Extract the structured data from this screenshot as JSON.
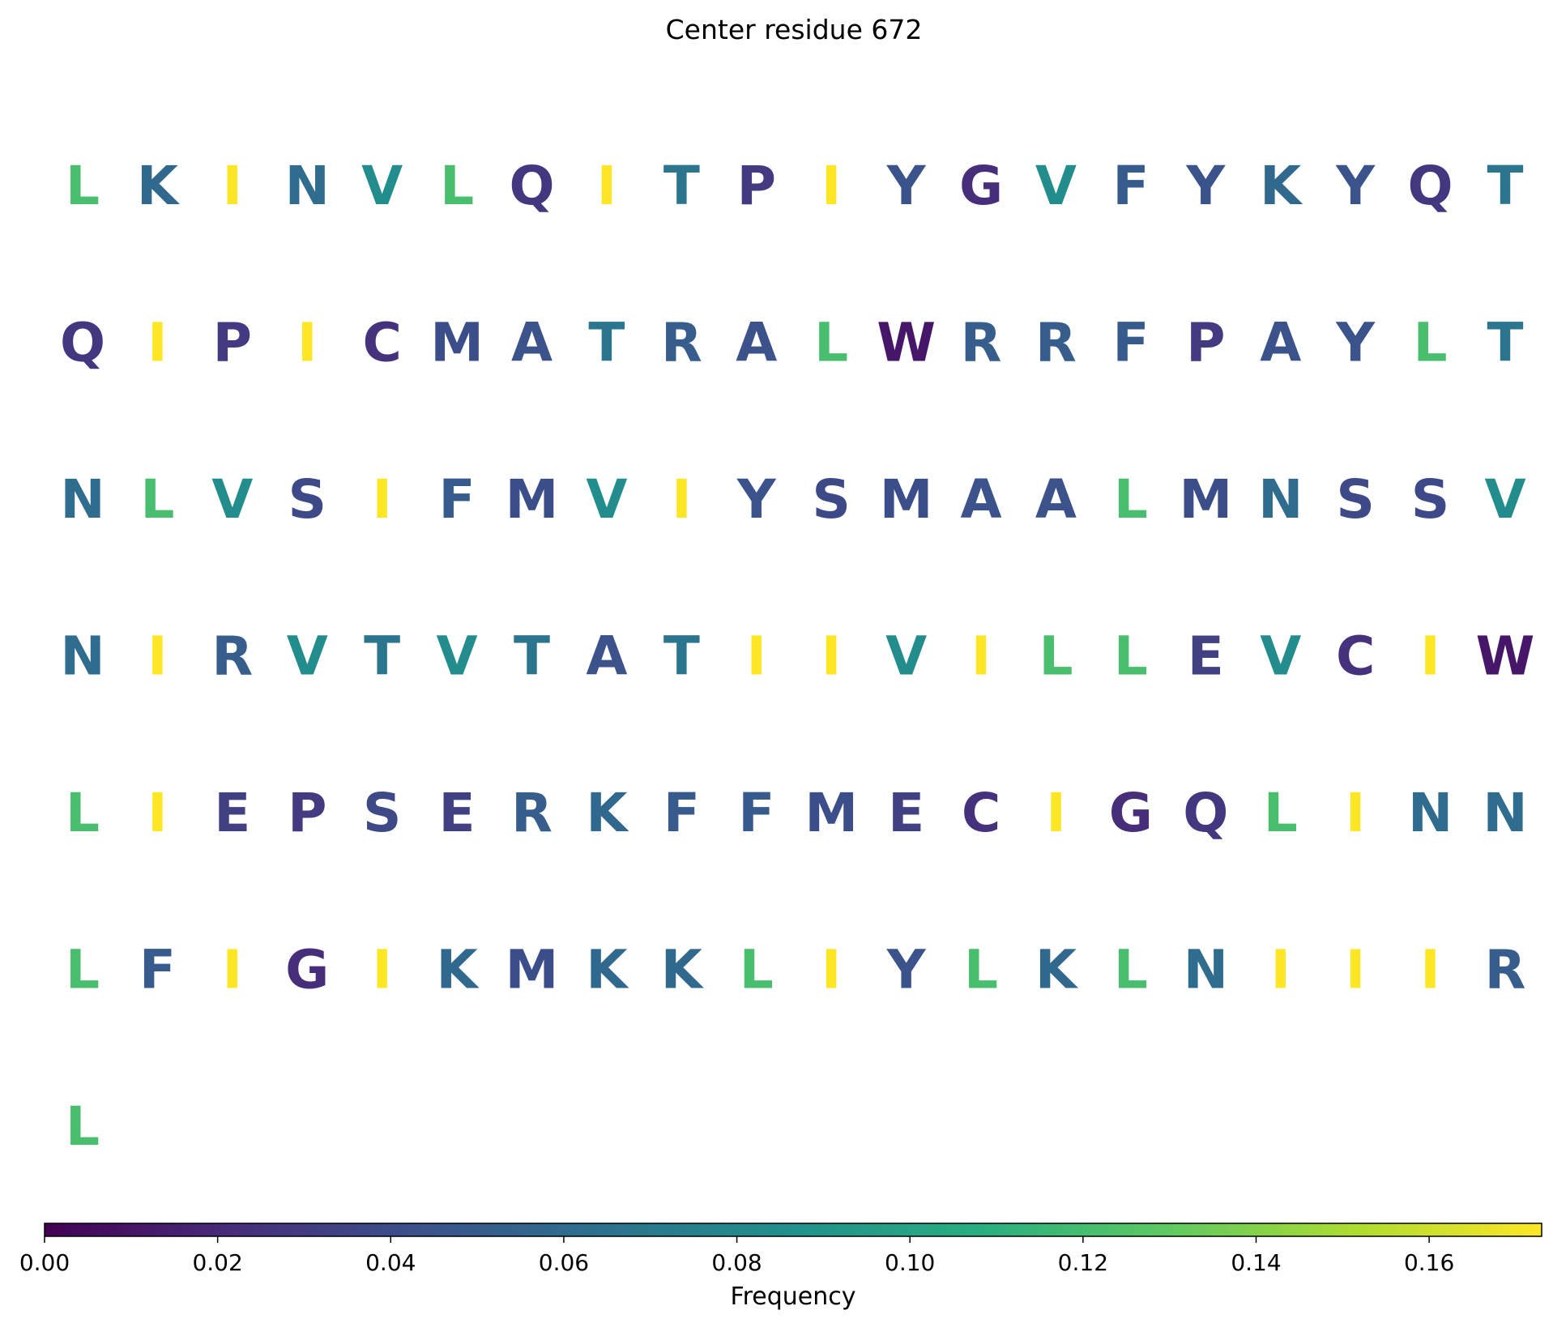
{
  "chart_data": {
    "type": "sequence-heatmap",
    "title": "Center residue 672",
    "columns": 20,
    "residues": [
      "L",
      "K",
      "I",
      "N",
      "V",
      "L",
      "Q",
      "I",
      "T",
      "P",
      "I",
      "Y",
      "G",
      "V",
      "F",
      "Y",
      "K",
      "Y",
      "Q",
      "T",
      "Q",
      "I",
      "P",
      "I",
      "C",
      "M",
      "A",
      "T",
      "R",
      "A",
      "L",
      "W",
      "R",
      "R",
      "F",
      "P",
      "A",
      "Y",
      "L",
      "T",
      "N",
      "L",
      "V",
      "S",
      "I",
      "F",
      "M",
      "V",
      "I",
      "Y",
      "S",
      "M",
      "A",
      "A",
      "L",
      "M",
      "N",
      "S",
      "S",
      "V",
      "N",
      "I",
      "R",
      "V",
      "T",
      "V",
      "T",
      "A",
      "T",
      "I",
      "I",
      "V",
      "I",
      "L",
      "L",
      "E",
      "V",
      "C",
      "I",
      "W",
      "L",
      "I",
      "E",
      "P",
      "S",
      "E",
      "R",
      "K",
      "F",
      "F",
      "M",
      "E",
      "C",
      "I",
      "G",
      "Q",
      "L",
      "I",
      "N",
      "N",
      "L",
      "F",
      "I",
      "G",
      "I",
      "K",
      "M",
      "K",
      "K",
      "L",
      "I",
      "Y",
      "L",
      "K",
      "L",
      "N",
      "I",
      "I",
      "I",
      "R",
      "L"
    ],
    "frequencies": {
      "I": 0.173,
      "L": 0.121,
      "V": 0.084,
      "T": 0.067,
      "N": 0.061,
      "K": 0.058,
      "R": 0.051,
      "F": 0.049,
      "Y": 0.044,
      "A": 0.043,
      "M": 0.041,
      "S": 0.038,
      "E": 0.033,
      "P": 0.03,
      "Q": 0.028,
      "C": 0.024,
      "G": 0.022,
      "W": 0.011
    },
    "colorbar": {
      "label": "Frequency",
      "colormap": "viridis",
      "range": [
        0.0,
        0.173
      ],
      "ticks": [
        0.0,
        0.02,
        0.04,
        0.06,
        0.08,
        0.1,
        0.12,
        0.14,
        0.16
      ],
      "tick_labels": [
        "0.00",
        "0.02",
        "0.04",
        "0.06",
        "0.08",
        "0.10",
        "0.12",
        "0.14",
        "0.16"
      ]
    }
  }
}
